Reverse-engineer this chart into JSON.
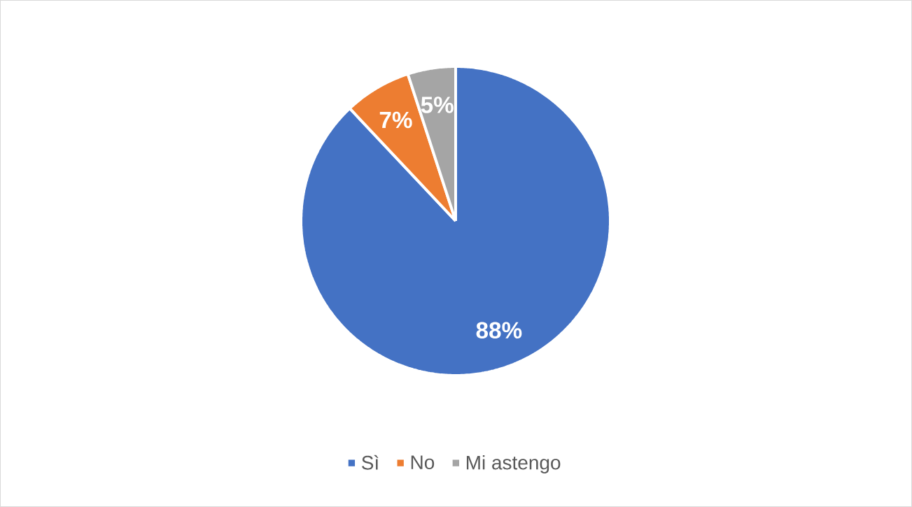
{
  "chart_data": {
    "type": "pie",
    "categories": [
      "Sì",
      "No",
      "Mi astengo"
    ],
    "values": [
      88,
      7,
      5
    ],
    "colors": [
      "#4472c4",
      "#ed7d31",
      "#a5a5a5"
    ],
    "value_labels": [
      "88%",
      "7%",
      "5%"
    ],
    "legend": "bottom"
  }
}
